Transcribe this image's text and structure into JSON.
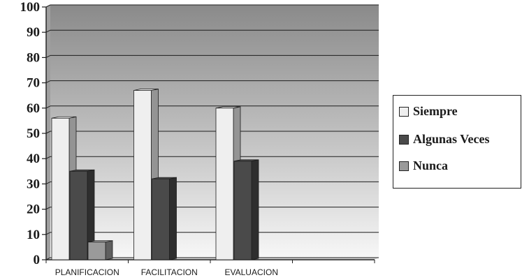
{
  "chart_data": {
    "type": "bar",
    "categories": [
      "PLANIFICACION",
      "FACILITACION",
      "EVALUACION",
      ""
    ],
    "series": [
      {
        "name": "Siempre",
        "values": [
          56,
          67,
          60,
          0
        ],
        "color": "#efefef"
      },
      {
        "name": "Algunas Veces",
        "values": [
          35,
          32,
          39,
          0
        ],
        "color": "#4a4a4a"
      },
      {
        "name": "Nunca",
        "values": [
          7,
          0,
          0,
          0
        ],
        "color": "#9a9a9a"
      }
    ],
    "yticks": [
      "0",
      "10",
      "20",
      "30",
      "40",
      "50",
      "60",
      "70",
      "80",
      "90",
      "100"
    ],
    "ylim": [
      0,
      100
    ],
    "grid": true,
    "legend": "right"
  }
}
